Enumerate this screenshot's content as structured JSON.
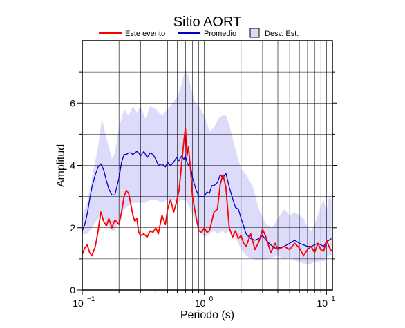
{
  "chart_data": {
    "type": "line",
    "title": "Sitio AORT",
    "xlabel": "Periodo (s)",
    "ylabel": "Amplitud",
    "x_scale": "log",
    "xlim": [
      0.1,
      11.2
    ],
    "ylim": [
      0,
      8
    ],
    "grid": true,
    "legend_position": "top",
    "x_ticks": [
      {
        "value": 0.1,
        "base": "10",
        "exp": "−1"
      },
      {
        "value": 1,
        "base": "10",
        "exp": "0"
      },
      {
        "value": 10,
        "base": "10",
        "exp": "1"
      }
    ],
    "y_ticks": [
      {
        "value": 0,
        "label": "0"
      },
      {
        "value": 2,
        "label": "2"
      },
      {
        "value": 4,
        "label": "4"
      },
      {
        "value": 6,
        "label": "6"
      }
    ],
    "legend": [
      {
        "label": "Este evento",
        "kind": "line",
        "color": "#ff0000"
      },
      {
        "label": "Promedio",
        "kind": "line",
        "color": "#0000cc"
      },
      {
        "label": "Desv. Est.",
        "kind": "box",
        "color": "#dcdcfa"
      }
    ],
    "series": [
      {
        "name": "Este evento",
        "color": "#ff0000",
        "x": [
          0.1,
          0.105,
          0.11,
          0.115,
          0.12,
          0.128,
          0.135,
          0.142,
          0.15,
          0.158,
          0.165,
          0.175,
          0.185,
          0.2,
          0.21,
          0.22,
          0.23,
          0.24,
          0.25,
          0.26,
          0.27,
          0.28,
          0.29,
          0.3,
          0.32,
          0.34,
          0.36,
          0.38,
          0.4,
          0.42,
          0.45,
          0.48,
          0.5,
          0.53,
          0.56,
          0.59,
          0.62,
          0.65,
          0.68,
          0.7,
          0.72,
          0.74,
          0.77,
          0.8,
          0.85,
          0.9,
          0.95,
          1.0,
          1.05,
          1.1,
          1.15,
          1.2,
          1.28,
          1.35,
          1.42,
          1.5,
          1.6,
          1.7,
          1.8,
          1.9,
          2.0,
          2.1,
          2.2,
          2.4,
          2.6,
          2.8,
          3.0,
          3.2,
          3.5,
          3.8,
          4.0,
          4.5,
          5.0,
          5.5,
          6.0,
          6.5,
          7.0,
          7.5,
          8.0,
          8.5,
          9.0,
          9.5,
          10.0,
          10.5,
          11.0
        ],
        "values": [
          1.15,
          1.35,
          1.45,
          1.2,
          1.1,
          1.4,
          1.9,
          2.5,
          2.2,
          2.05,
          2.3,
          2.0,
          2.25,
          2.1,
          2.5,
          3.0,
          3.2,
          3.1,
          2.75,
          2.4,
          2.2,
          2.3,
          1.85,
          1.75,
          1.8,
          1.7,
          1.9,
          1.85,
          2.0,
          1.8,
          2.4,
          2.1,
          2.6,
          2.9,
          2.5,
          2.8,
          3.2,
          4.0,
          4.8,
          5.2,
          4.3,
          4.6,
          3.9,
          3.0,
          2.4,
          1.9,
          1.85,
          2.0,
          1.85,
          1.9,
          2.2,
          2.5,
          2.6,
          3.4,
          3.7,
          3.3,
          2.0,
          1.7,
          1.9,
          1.65,
          1.75,
          1.5,
          1.4,
          1.8,
          1.3,
          1.55,
          1.95,
          1.7,
          1.2,
          1.5,
          1.3,
          1.4,
          1.3,
          1.5,
          1.35,
          1.1,
          1.3,
          1.4,
          1.2,
          1.5,
          1.3,
          1.25,
          1.6,
          1.4,
          1.25
        ]
      },
      {
        "name": "Promedio",
        "color": "#0000cc",
        "x": [
          0.1,
          0.105,
          0.11,
          0.115,
          0.12,
          0.128,
          0.135,
          0.142,
          0.15,
          0.158,
          0.165,
          0.175,
          0.185,
          0.2,
          0.21,
          0.22,
          0.23,
          0.24,
          0.25,
          0.26,
          0.27,
          0.28,
          0.29,
          0.3,
          0.32,
          0.34,
          0.36,
          0.38,
          0.4,
          0.42,
          0.45,
          0.48,
          0.5,
          0.53,
          0.56,
          0.59,
          0.62,
          0.65,
          0.68,
          0.7,
          0.72,
          0.74,
          0.77,
          0.8,
          0.85,
          0.9,
          0.95,
          1.0,
          1.05,
          1.1,
          1.15,
          1.2,
          1.28,
          1.35,
          1.42,
          1.5,
          1.6,
          1.7,
          1.8,
          1.9,
          2.0,
          2.1,
          2.2,
          2.4,
          2.6,
          2.8,
          3.0,
          3.2,
          3.5,
          3.8,
          4.0,
          4.5,
          5.0,
          5.5,
          6.0,
          6.5,
          7.0,
          7.5,
          8.0,
          8.5,
          9.0,
          9.5,
          10.0,
          10.5,
          11.0
        ],
        "values": [
          1.9,
          2.1,
          2.45,
          2.9,
          3.3,
          3.7,
          3.95,
          4.05,
          3.85,
          3.5,
          3.25,
          3.05,
          3.05,
          3.6,
          4.1,
          4.35,
          4.35,
          4.4,
          4.4,
          4.35,
          4.4,
          4.45,
          4.4,
          4.3,
          4.45,
          4.25,
          4.4,
          4.35,
          4.2,
          4.0,
          4.05,
          3.95,
          4.1,
          4.0,
          4.1,
          4.25,
          4.15,
          4.3,
          4.2,
          4.3,
          4.1,
          4.0,
          4.0,
          3.6,
          3.25,
          3.0,
          3.0,
          3.0,
          3.15,
          3.1,
          3.35,
          3.35,
          3.45,
          3.7,
          3.6,
          3.75,
          3.3,
          2.95,
          2.65,
          2.6,
          2.3,
          2.05,
          1.8,
          1.65,
          1.6,
          1.65,
          1.75,
          1.6,
          1.45,
          1.35,
          1.35,
          1.4,
          1.5,
          1.6,
          1.5,
          1.45,
          1.4,
          1.4,
          1.45,
          1.5,
          1.45,
          1.4,
          1.55,
          1.6,
          1.65
        ]
      }
    ],
    "std_band": {
      "name": "Desv. Est.",
      "color": "#dcdcfa",
      "x": [
        0.1,
        0.11,
        0.12,
        0.135,
        0.145,
        0.155,
        0.165,
        0.175,
        0.185,
        0.2,
        0.22,
        0.24,
        0.26,
        0.28,
        0.3,
        0.33,
        0.36,
        0.4,
        0.45,
        0.5,
        0.55,
        0.6,
        0.65,
        0.7,
        0.75,
        0.8,
        0.85,
        0.9,
        1.0,
        1.1,
        1.2,
        1.3,
        1.4,
        1.5,
        1.6,
        1.8,
        2.0,
        2.2,
        2.5,
        2.8,
        3.2,
        3.6,
        4.0,
        4.5,
        5.0,
        5.5,
        6.0,
        6.5,
        7.0,
        7.5,
        8.0,
        8.5,
        9.0,
        9.5,
        10.0,
        10.5,
        11.0
      ],
      "upper": [
        2.4,
        2.8,
        3.6,
        4.6,
        5.5,
        5.0,
        4.6,
        4.2,
        4.4,
        5.2,
        5.8,
        5.6,
        5.9,
        5.7,
        5.9,
        5.5,
        5.9,
        5.8,
        5.6,
        5.8,
        6.0,
        6.2,
        6.6,
        7.1,
        6.8,
        6.3,
        6.0,
        5.9,
        5.6,
        5.1,
        5.2,
        5.5,
        5.6,
        5.6,
        5.3,
        4.5,
        3.9,
        3.7,
        3.3,
        2.6,
        2.1,
        2.0,
        2.3,
        2.6,
        2.4,
        2.5,
        2.4,
        2.3,
        2.0,
        1.9,
        2.1,
        2.4,
        2.7,
        2.9,
        2.5,
        3.0,
        2.9
      ],
      "lower": [
        1.8,
        1.8,
        2.0,
        2.3,
        2.4,
        2.2,
        2.0,
        1.9,
        1.9,
        2.2,
        2.6,
        2.7,
        2.8,
        2.8,
        2.8,
        2.8,
        2.9,
        2.9,
        2.8,
        2.9,
        2.9,
        2.8,
        2.9,
        2.9,
        2.7,
        2.4,
        2.2,
        1.9,
        1.7,
        1.8,
        1.9,
        1.8,
        1.9,
        1.8,
        1.9,
        1.7,
        1.3,
        1.1,
        1.0,
        0.95,
        1.0,
        1.05,
        1.1,
        1.0,
        1.05,
        0.95,
        0.9,
        0.85,
        0.8,
        0.85,
        0.9,
        0.9,
        0.95,
        0.9,
        1.05,
        1.1,
        1.1
      ]
    }
  }
}
